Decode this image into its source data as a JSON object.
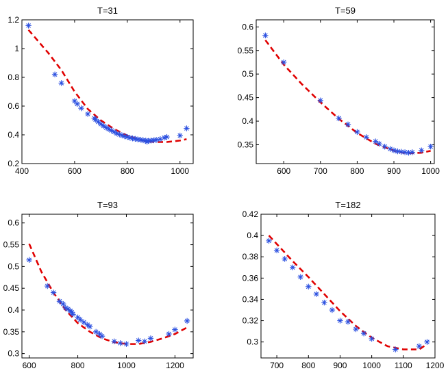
{
  "colors": {
    "markers": "#2a4fe0",
    "fit": "#e00000",
    "axes": "#000000"
  },
  "chart_data": [
    {
      "type": "scatter",
      "title": "T=31",
      "xlim": [
        400,
        1050
      ],
      "ylim": [
        0.2,
        1.2
      ],
      "xticks": [
        400,
        600,
        800,
        1000
      ],
      "xtick_labels": [
        "400",
        "600",
        "800",
        "1000"
      ],
      "yticks": [
        0.2,
        0.4,
        0.6,
        0.8,
        1.0,
        1.2
      ],
      "ytick_labels": [
        "0.2",
        "0.4",
        "0.6",
        "0.8",
        "1",
        "1.2"
      ],
      "series": [
        {
          "name": "observed",
          "marker": "*",
          "x": [
            425,
            525,
            550,
            600,
            610,
            625,
            650,
            675,
            680,
            690,
            700,
            710,
            720,
            730,
            740,
            750,
            760,
            770,
            780,
            790,
            800,
            810,
            820,
            830,
            840,
            850,
            860,
            870,
            875,
            880,
            890,
            900,
            910,
            925,
            940,
            950,
            1000,
            1025
          ],
          "y": [
            1.16,
            0.82,
            0.76,
            0.635,
            0.615,
            0.585,
            0.545,
            0.515,
            0.505,
            0.49,
            0.475,
            0.462,
            0.45,
            0.44,
            0.43,
            0.42,
            0.41,
            0.403,
            0.396,
            0.39,
            0.385,
            0.38,
            0.375,
            0.372,
            0.368,
            0.366,
            0.362,
            0.36,
            0.352,
            0.358,
            0.36,
            0.362,
            0.365,
            0.37,
            0.38,
            0.385,
            0.395,
            0.445
          ]
        },
        {
          "name": "fit",
          "style": "dashed",
          "x": [
            425,
            500,
            550,
            600,
            650,
            700,
            750,
            800,
            850,
            875,
            900,
            950,
            1000,
            1025
          ],
          "y": [
            1.13,
            0.97,
            0.85,
            0.7,
            0.58,
            0.5,
            0.44,
            0.395,
            0.365,
            0.355,
            0.35,
            0.35,
            0.36,
            0.37
          ]
        }
      ]
    },
    {
      "type": "scatter",
      "title": "T=59",
      "xlim": [
        525,
        1010
      ],
      "ylim": [
        0.31,
        0.615
      ],
      "xticks": [
        600,
        700,
        800,
        900,
        1000
      ],
      "xtick_labels": [
        "600",
        "700",
        "800",
        "900",
        "1000"
      ],
      "yticks": [
        0.35,
        0.4,
        0.45,
        0.5,
        0.55,
        0.6
      ],
      "ytick_labels": [
        "0.35",
        "0.4",
        "0.45",
        "0.5",
        "0.55",
        "0.6"
      ],
      "series": [
        {
          "name": "observed",
          "marker": "*",
          "x": [
            550,
            600,
            700,
            750,
            775,
            800,
            825,
            850,
            860,
            875,
            890,
            900,
            910,
            920,
            930,
            940,
            950,
            975,
            1000
          ],
          "y": [
            0.582,
            0.525,
            0.444,
            0.406,
            0.393,
            0.377,
            0.366,
            0.357,
            0.352,
            0.346,
            0.341,
            0.338,
            0.336,
            0.335,
            0.334,
            0.333,
            0.334,
            0.338,
            0.346
          ]
        },
        {
          "name": "fit",
          "style": "dashed",
          "x": [
            550,
            600,
            650,
            700,
            750,
            800,
            850,
            900,
            925,
            950,
            975,
            1000
          ],
          "y": [
            0.572,
            0.52,
            0.478,
            0.44,
            0.405,
            0.375,
            0.352,
            0.337,
            0.333,
            0.332,
            0.333,
            0.337
          ]
        }
      ]
    },
    {
      "type": "scatter",
      "title": "T=93",
      "xlim": [
        570,
        1275
      ],
      "ylim": [
        0.29,
        0.62
      ],
      "xticks": [
        600,
        800,
        1000,
        1200
      ],
      "xtick_labels": [
        "600",
        "800",
        "1000",
        "1200"
      ],
      "yticks": [
        0.3,
        0.35,
        0.4,
        0.45,
        0.5,
        0.55,
        0.6
      ],
      "ytick_labels": [
        "0.3",
        "0.35",
        "0.4",
        "0.45",
        "0.5",
        "0.55",
        "0.6"
      ],
      "series": [
        {
          "name": "observed",
          "marker": "*",
          "x": [
            600,
            675,
            700,
            725,
            740,
            750,
            760,
            770,
            775,
            780,
            800,
            810,
            825,
            840,
            850,
            875,
            890,
            900,
            950,
            975,
            1000,
            1050,
            1075,
            1100,
            1175,
            1200,
            1250
          ],
          "y": [
            0.515,
            0.455,
            0.44,
            0.42,
            0.414,
            0.405,
            0.402,
            0.398,
            0.395,
            0.39,
            0.383,
            0.378,
            0.372,
            0.366,
            0.362,
            0.35,
            0.345,
            0.34,
            0.328,
            0.324,
            0.322,
            0.33,
            0.328,
            0.335,
            0.345,
            0.355,
            0.375
          ]
        },
        {
          "name": "fit",
          "style": "dashed",
          "x": [
            600,
            650,
            700,
            750,
            800,
            850,
            900,
            950,
            1000,
            1050,
            1100,
            1150,
            1200,
            1250
          ],
          "y": [
            0.552,
            0.488,
            0.44,
            0.4,
            0.37,
            0.35,
            0.335,
            0.326,
            0.322,
            0.322,
            0.327,
            0.335,
            0.345,
            0.36
          ]
        }
      ]
    },
    {
      "type": "scatter",
      "title": "T=182",
      "xlim": [
        650,
        1200
      ],
      "ylim": [
        0.285,
        0.42
      ],
      "xticks": [
        700,
        800,
        900,
        1000,
        1100,
        1200
      ],
      "xtick_labels": [
        "700",
        "800",
        "900",
        "1000",
        "1100",
        "1200"
      ],
      "yticks": [
        0.3,
        0.32,
        0.34,
        0.36,
        0.38,
        0.4,
        0.42
      ],
      "ytick_labels": [
        "0.3",
        "0.32",
        "0.34",
        "0.36",
        "0.38",
        "0.4",
        "0.42"
      ],
      "series": [
        {
          "name": "observed",
          "marker": "*",
          "x": [
            675,
            700,
            725,
            750,
            775,
            800,
            825,
            850,
            875,
            900,
            925,
            950,
            975,
            1000,
            1075,
            1150,
            1175
          ],
          "y": [
            0.395,
            0.386,
            0.378,
            0.37,
            0.361,
            0.352,
            0.345,
            0.337,
            0.33,
            0.32,
            0.319,
            0.312,
            0.308,
            0.303,
            0.293,
            0.296,
            0.3
          ]
        },
        {
          "name": "fit",
          "style": "dashed",
          "x": [
            675,
            700,
            750,
            800,
            850,
            900,
            950,
            1000,
            1050,
            1100,
            1150,
            1175
          ],
          "y": [
            0.4,
            0.392,
            0.376,
            0.361,
            0.345,
            0.329,
            0.315,
            0.304,
            0.296,
            0.293,
            0.293,
            0.298
          ]
        }
      ]
    }
  ]
}
